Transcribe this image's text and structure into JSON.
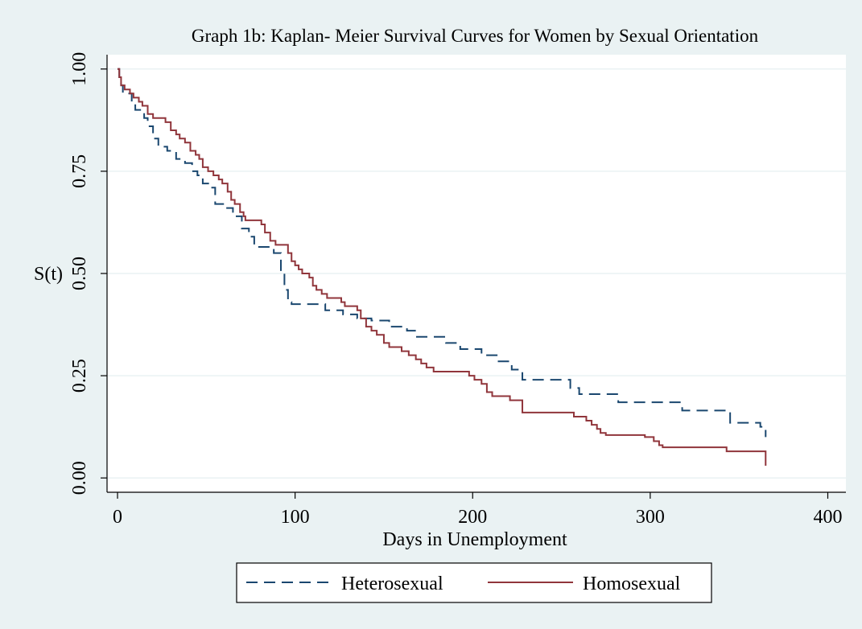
{
  "chart_data": {
    "type": "line",
    "drawstyle": "steps-post",
    "title": "Graph 1b: Kaplan- Meier Survival Curves for Women by Sexual Orientation",
    "xlabel": "Days in Unemployment",
    "ylabel": "S(t)",
    "xlim": [
      -5.9,
      410.2
    ],
    "xticks": [
      0,
      100,
      200,
      300,
      400
    ],
    "ylim": [
      -0.035,
      1.035
    ],
    "yticks": [
      {
        "value": 0,
        "label": "0.00"
      },
      {
        "value": 0.25,
        "label": "0.25"
      },
      {
        "value": 0.5,
        "label": "0.50"
      },
      {
        "value": 0.75,
        "label": "0.75"
      },
      {
        "value": 1,
        "label": "1.00"
      }
    ],
    "grid": true,
    "series": [
      {
        "name": "Heterosexual",
        "color": "#1a476f",
        "dashed": true,
        "x": [
          0,
          1,
          2,
          3,
          8,
          10,
          15,
          17,
          20,
          23,
          28,
          33,
          38,
          42,
          45,
          48,
          52,
          55,
          60,
          65,
          70,
          74,
          77,
          88,
          92,
          94,
          96,
          98,
          117,
          127,
          135,
          143,
          153,
          163,
          168,
          185,
          193,
          205,
          214,
          222,
          228,
          255,
          260,
          282,
          318,
          345,
          362,
          365
        ],
        "values": [
          1.0,
          0.98,
          0.96,
          0.94,
          0.92,
          0.9,
          0.88,
          0.86,
          0.83,
          0.81,
          0.8,
          0.78,
          0.77,
          0.75,
          0.74,
          0.72,
          0.71,
          0.67,
          0.66,
          0.64,
          0.61,
          0.59,
          0.565,
          0.55,
          0.5,
          0.46,
          0.43,
          0.425,
          0.41,
          0.4,
          0.39,
          0.385,
          0.37,
          0.36,
          0.345,
          0.33,
          0.315,
          0.3,
          0.285,
          0.265,
          0.24,
          0.22,
          0.205,
          0.185,
          0.165,
          0.135,
          0.125,
          0.1
        ]
      },
      {
        "name": "Homosexual",
        "color": "#90353b",
        "dashed": false,
        "x": [
          0,
          1,
          2,
          4,
          7,
          9,
          12,
          14,
          17,
          20,
          27,
          30,
          33,
          35,
          38,
          41,
          44,
          46,
          48,
          51,
          54,
          57,
          59,
          62,
          64,
          66,
          69,
          71,
          72,
          81,
          83,
          86,
          89,
          96,
          98,
          100,
          102,
          104,
          108,
          110,
          112,
          115,
          118,
          126,
          128,
          135,
          137,
          140,
          143,
          146,
          150,
          153,
          160,
          164,
          168,
          171,
          174,
          178,
          198,
          201,
          205,
          208,
          211,
          221,
          228,
          257,
          264,
          267,
          270,
          272,
          275,
          297,
          302,
          305,
          307,
          343,
          365
        ],
        "values": [
          1.0,
          0.98,
          0.96,
          0.95,
          0.94,
          0.93,
          0.92,
          0.91,
          0.89,
          0.88,
          0.87,
          0.85,
          0.84,
          0.83,
          0.82,
          0.8,
          0.79,
          0.78,
          0.76,
          0.75,
          0.74,
          0.73,
          0.72,
          0.7,
          0.68,
          0.67,
          0.65,
          0.64,
          0.63,
          0.62,
          0.6,
          0.58,
          0.57,
          0.55,
          0.53,
          0.52,
          0.51,
          0.5,
          0.49,
          0.47,
          0.46,
          0.45,
          0.44,
          0.43,
          0.42,
          0.41,
          0.39,
          0.37,
          0.36,
          0.35,
          0.33,
          0.32,
          0.31,
          0.3,
          0.29,
          0.28,
          0.27,
          0.26,
          0.25,
          0.24,
          0.23,
          0.21,
          0.2,
          0.19,
          0.16,
          0.15,
          0.14,
          0.13,
          0.12,
          0.11,
          0.105,
          0.1,
          0.09,
          0.08,
          0.075,
          0.065,
          0.03
        ]
      }
    ]
  }
}
